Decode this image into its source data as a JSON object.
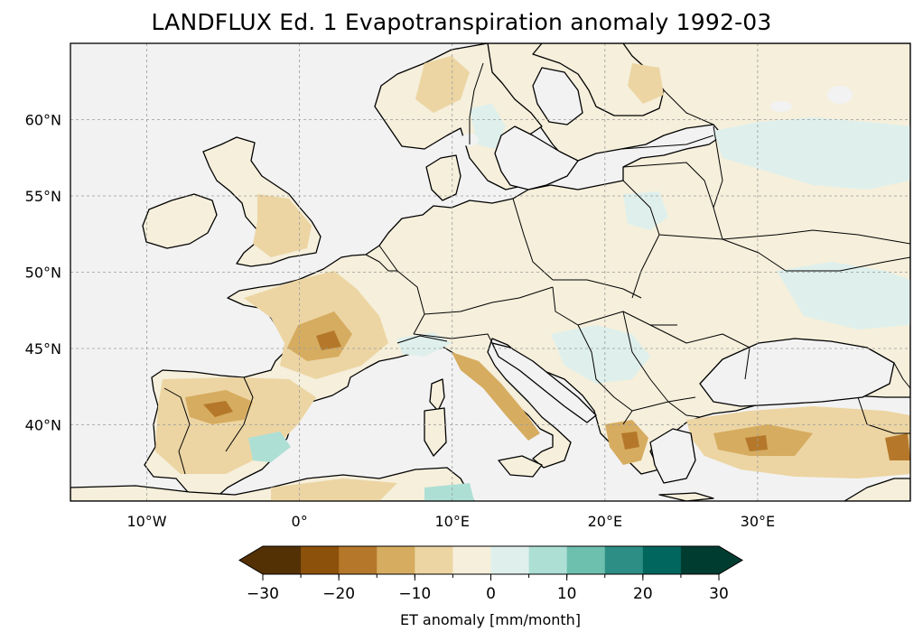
{
  "title": "LANDFLUX Ed. 1 Evapotranspiration anomaly 1992-03",
  "map": {
    "projection": "PlateCarree",
    "lon_range": [
      -15,
      40
    ],
    "lat_range": [
      35,
      65
    ],
    "lon_ticks": [
      {
        "value": -10,
        "label": "10°W"
      },
      {
        "value": 0,
        "label": "0°"
      },
      {
        "value": 10,
        "label": "10°E"
      },
      {
        "value": 20,
        "label": "20°E"
      },
      {
        "value": 30,
        "label": "30°E"
      }
    ],
    "lat_ticks": [
      {
        "value": 40,
        "label": "40°N"
      },
      {
        "value": 45,
        "label": "45°N"
      },
      {
        "value": 50,
        "label": "50°N"
      },
      {
        "value": 55,
        "label": "55°N"
      },
      {
        "value": 60,
        "label": "60°N"
      }
    ],
    "gridlines": true,
    "ocean_color": "#f2f2f2",
    "coastline_color": "#000000"
  },
  "colorbar": {
    "label": "ET anomaly [mm/month]",
    "range": [
      -30,
      30
    ],
    "extend": "both",
    "boundaries": [
      -30,
      -25,
      -20,
      -15,
      -10,
      -5,
      0,
      5,
      10,
      15,
      20,
      25,
      30
    ],
    "colors": [
      "#543005",
      "#8c510a",
      "#b5782a",
      "#d6ac60",
      "#ecd5a3",
      "#f5efdb",
      "#dff0ec",
      "#addfd5",
      "#6dbfae",
      "#2c8e84",
      "#01665e",
      "#003c30"
    ],
    "under_color": "#543005",
    "over_color": "#003c30",
    "ticks": [
      {
        "value": -30,
        "label": "−30"
      },
      {
        "value": -20,
        "label": "−20"
      },
      {
        "value": -10,
        "label": "−10"
      },
      {
        "value": 0,
        "label": "0"
      },
      {
        "value": 10,
        "label": "10"
      },
      {
        "value": 20,
        "label": "20"
      },
      {
        "value": 30,
        "label": "30"
      }
    ]
  }
}
